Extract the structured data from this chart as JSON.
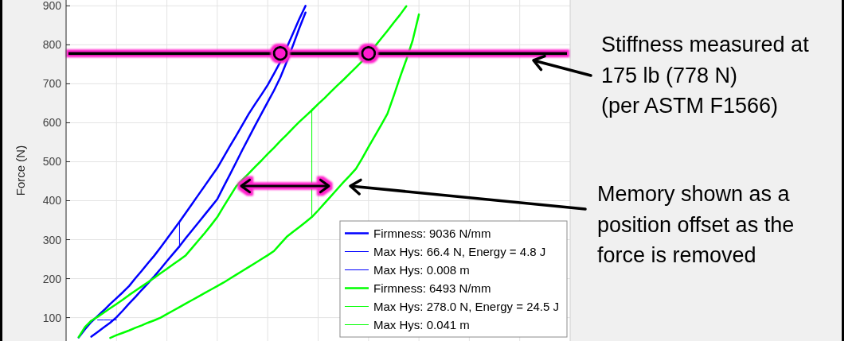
{
  "chart_data": {
    "type": "line",
    "ylabel": "Force (N)",
    "categories": [
      null,
      null,
      null,
      null,
      null,
      null,
      null,
      null,
      null,
      null,
      null,
      null,
      null,
      null,
      null,
      null,
      null,
      null,
      null,
      null,
      null,
      null,
      null,
      null,
      null,
      null,
      null,
      null,
      null,
      null,
      null,
      null,
      null,
      null,
      null,
      null,
      null,
      null,
      null,
      null,
      null,
      null,
      null,
      null,
      null,
      null,
      null,
      null,
      null,
      null,
      null,
      null,
      null,
      null,
      null,
      null,
      null,
      null,
      null,
      null,
      null,
      null,
      null,
      null,
      null,
      null,
      null,
      null,
      null,
      null,
      null,
      null,
      null,
      null,
      null,
      null,
      null,
      null,
      null,
      null,
      null
    ],
    "ylim": [
      40,
      915
    ],
    "yticks": [
      100,
      200,
      300,
      400,
      500,
      600,
      700,
      800,
      900
    ],
    "tick_labels": "y",
    "grid": true,
    "legend": "bottom right",
    "series": [
      {
        "name": "Firmness: 9036 N/mm",
        "color": "#0000ff",
        "values": [
          null,
          null,
          49,
          70,
          89,
          104,
          119,
          135,
          150,
          165,
          181,
          201,
          220,
          240,
          259,
          280,
          302,
          324,
          346,
          369,
          392,
          415,
          438,
          461,
          484,
          512,
          540,
          567,
          595,
          623,
          648,
          672,
          697,
          726,
          756,
          792,
          829,
          866,
          900,
          null,
          null,
          null,
          null,
          null,
          null,
          null,
          null,
          null,
          null,
          null,
          null,
          null,
          null,
          null,
          null,
          null,
          null,
          null,
          null,
          null,
          null,
          null,
          null,
          null,
          null,
          null,
          null,
          null,
          null,
          null,
          null,
          null,
          null,
          null,
          null,
          null,
          null,
          null,
          null,
          null,
          null
        ]
      },
      {
        "color": "#0000ff",
        "values": [
          null,
          null,
          null,
          null,
          51,
          63,
          75,
          87,
          101,
          118,
          136,
          153,
          171,
          188,
          206,
          225,
          245,
          264,
          283,
          304,
          324,
          344,
          364,
          384,
          404,
          436,
          467,
          499,
          531,
          562,
          593,
          623,
          653,
          683,
          716,
          756,
          798,
          842,
          883,
          null,
          null,
          null,
          null,
          null,
          null,
          null,
          null,
          null,
          null,
          null,
          null,
          null,
          null,
          null,
          null,
          null,
          null,
          null,
          null,
          null,
          null,
          null,
          null,
          null,
          null,
          null,
          null,
          null,
          null,
          null,
          null,
          null,
          null,
          null,
          null,
          null,
          null,
          null,
          null,
          null,
          null
        ]
      },
      {
        "name": "Max Hys: 66.4 N, Energy = 4.8 J",
        "type": "bar",
        "color": "#0000ff",
        "values": [
          null,
          null,
          null,
          null,
          null,
          null,
          null,
          null,
          null,
          null,
          null,
          null,
          null,
          null,
          null,
          null,
          null,
          null,
          66,
          null,
          null,
          null,
          null,
          null,
          null,
          null,
          null,
          null,
          null,
          null,
          null,
          null,
          null,
          null,
          null,
          null,
          null,
          null,
          null,
          null,
          null,
          null,
          null,
          null,
          null,
          null,
          null,
          null,
          null,
          null,
          null,
          null,
          null,
          null,
          null,
          null,
          null,
          null,
          null,
          null,
          null,
          null,
          null,
          null,
          null,
          null,
          null,
          null,
          null,
          null,
          null,
          null,
          null,
          null,
          null,
          null,
          null,
          null,
          null,
          null,
          null
        ],
        "base": [
          null,
          null,
          null,
          null,
          null,
          null,
          null,
          null,
          null,
          null,
          null,
          null,
          null,
          null,
          null,
          null,
          null,
          null,
          280,
          null,
          null,
          null,
          null,
          null,
          null,
          null,
          null,
          null,
          null,
          null,
          null,
          null,
          null,
          null,
          null,
          null,
          null,
          null,
          null,
          null,
          null,
          null,
          null,
          null,
          null,
          null,
          null,
          null,
          null,
          null,
          null,
          null,
          null,
          null,
          null,
          null,
          null,
          null,
          null,
          null,
          null,
          null,
          null,
          null,
          null,
          null,
          null,
          null,
          null,
          null,
          null,
          null,
          null,
          null,
          null,
          null,
          null,
          null,
          null,
          null,
          null
        ]
      },
      {
        "name": "Max Hys: 0.008 m",
        "color": "#0000ff",
        "values": [
          null,
          null,
          null,
          null,
          null,
          94,
          94,
          94,
          94,
          null,
          null,
          null,
          null,
          null,
          null,
          null,
          null,
          null,
          null,
          null,
          null,
          null,
          null,
          null,
          null,
          null,
          null,
          null,
          null,
          null,
          null,
          null,
          null,
          null,
          null,
          null,
          null,
          null,
          null,
          null,
          null,
          null,
          null,
          null,
          null,
          null,
          null,
          null,
          null,
          null,
          null,
          null,
          null,
          null,
          null,
          null,
          null,
          null,
          null,
          null,
          null,
          null,
          null,
          null,
          null,
          null,
          null,
          null,
          null,
          null,
          null,
          null,
          null,
          null,
          null,
          null,
          null,
          null,
          null,
          null,
          null
        ]
      },
      {
        "name": "Firmness: 6493 N/mm",
        "color": "#00ff00",
        "values": [
          null,
          null,
          50,
          76,
          92,
          102,
          113,
          124,
          135,
          146,
          158,
          169,
          180,
          191,
          202,
          214,
          225,
          237,
          248,
          260,
          279,
          298,
          317,
          337,
          358,
          385,
          411,
          437,
          454,
          470,
          487,
          503,
          520,
          536,
          553,
          569,
          586,
          602,
          617,
          632,
          648,
          663,
          679,
          695,
          710,
          726,
          742,
          758,
          776,
          796,
          816,
          836,
          857,
          877,
          899,
          null,
          null,
          null,
          null,
          null,
          null,
          null,
          null,
          null,
          null,
          null,
          null,
          null,
          null,
          null,
          null,
          null,
          null,
          null,
          null,
          null,
          null,
          null,
          null,
          null,
          null
        ]
      },
      {
        "color": "#00ff00",
        "values": [
          null,
          null,
          null,
          null,
          null,
          null,
          null,
          48,
          55,
          61,
          67,
          74,
          80,
          87,
          93,
          100,
          109,
          118,
          127,
          136,
          145,
          154,
          163,
          172,
          181,
          190,
          200,
          210,
          220,
          230,
          240,
          250,
          260,
          271,
          289,
          307,
          320,
          332,
          345,
          358,
          375,
          393,
          411,
          429,
          447,
          464,
          482,
          509,
          538,
          566,
          594,
          623,
          669,
          717,
          762,
          811,
          878,
          null,
          null,
          null,
          null,
          null,
          null,
          null,
          null,
          null,
          null,
          null,
          null,
          null,
          null,
          null,
          null,
          null,
          null,
          null,
          null,
          null,
          null,
          null,
          null
        ]
      },
      {
        "name": "Max Hys: 278.0 N, Energy = 24.5 J",
        "type": "bar",
        "color": "#00ff00",
        "values": [
          null,
          null,
          null,
          null,
          null,
          null,
          null,
          null,
          null,
          null,
          null,
          null,
          null,
          null,
          null,
          null,
          null,
          null,
          null,
          null,
          null,
          null,
          null,
          null,
          null,
          null,
          null,
          null,
          null,
          null,
          null,
          null,
          null,
          null,
          null,
          null,
          null,
          null,
          null,
          278,
          null,
          null,
          null,
          null,
          null,
          null,
          null,
          null,
          null,
          null,
          null,
          null,
          null,
          null,
          null,
          null,
          null,
          null,
          null,
          null,
          null,
          null,
          null,
          null,
          null,
          null,
          null,
          null,
          null,
          null,
          null,
          null,
          null,
          null,
          null,
          null,
          null,
          null,
          null,
          null,
          null
        ],
        "base": [
          null,
          null,
          null,
          null,
          null,
          null,
          null,
          null,
          null,
          null,
          null,
          null,
          null,
          null,
          null,
          null,
          null,
          null,
          null,
          null,
          null,
          null,
          null,
          null,
          null,
          null,
          null,
          null,
          null,
          null,
          null,
          null,
          null,
          null,
          null,
          null,
          null,
          null,
          null,
          358,
          null,
          null,
          null,
          null,
          null,
          null,
          null,
          null,
          null,
          null,
          null,
          null,
          null,
          null,
          null,
          null,
          null,
          null,
          null,
          null,
          null,
          null,
          null,
          null,
          null,
          null,
          null,
          null,
          null,
          null,
          null,
          null,
          null,
          null,
          null,
          null,
          null,
          null,
          null,
          null,
          null
        ]
      },
      {
        "name": "Max Hys: 0.041 m",
        "color": "#00ff00",
        "values": [
          null,
          null,
          null,
          null,
          null,
          null,
          null,
          null,
          null,
          null,
          null,
          null,
          null,
          null,
          null,
          null,
          null,
          null,
          null,
          null,
          null,
          null,
          null,
          null,
          null,
          null,
          null,
          null,
          null,
          null,
          null,
          null,
          null,
          null,
          null,
          null,
          null,
          null,
          null,
          null,
          null,
          null,
          null,
          null,
          null,
          null,
          null,
          null,
          null,
          null,
          null,
          null,
          null,
          null,
          null,
          null,
          null,
          null,
          null,
          null,
          null,
          null,
          null,
          null,
          null,
          null,
          null,
          null,
          null,
          null,
          null,
          null,
          null,
          null,
          null,
          null,
          null,
          null,
          null,
          null,
          null
        ]
      },
      {
        "type": "scatter",
        "color": "#ff1fcf",
        "marker": "circle",
        "values": [
          null,
          null,
          null,
          null,
          null,
          null,
          null,
          null,
          null,
          null,
          null,
          null,
          null,
          null,
          null,
          null,
          null,
          null,
          null,
          null,
          null,
          null,
          null,
          null,
          null,
          null,
          null,
          null,
          null,
          null,
          null,
          null,
          null,
          null,
          778,
          null,
          null,
          null,
          null,
          null,
          null,
          null,
          null,
          null,
          null,
          null,
          null,
          null,
          778,
          null,
          null,
          null,
          null,
          null,
          null,
          null,
          null,
          null,
          null,
          null,
          null,
          null,
          null,
          null,
          null,
          null,
          null,
          null,
          null,
          null,
          null,
          null,
          null,
          null,
          null,
          null,
          null,
          null,
          null,
          null,
          null
        ]
      }
    ],
    "ref_lines": [
      {
        "axis": "y",
        "value": 778,
        "color": "#000000"
      }
    ],
    "annotations": [
      "Stiffness measured at\n175 lb (778 N)\n(per ASTM F1566)",
      "Memory shown as a\nposition offset as the\nforce is removed"
    ]
  }
}
